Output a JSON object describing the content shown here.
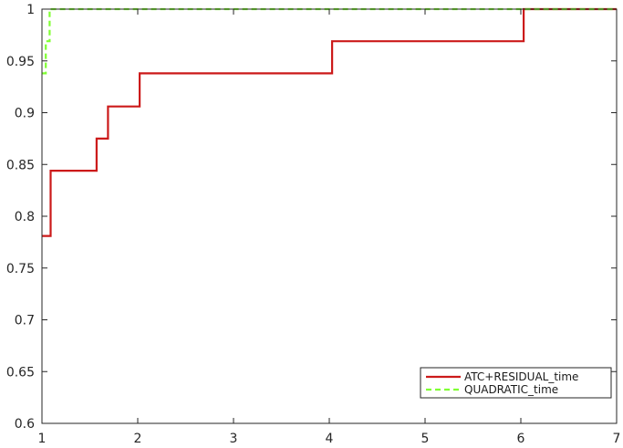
{
  "chart_data": {
    "type": "line",
    "xlim": [
      1,
      7
    ],
    "ylim": [
      0.6,
      1
    ],
    "x_ticks": [
      1,
      2,
      3,
      4,
      5,
      6,
      7
    ],
    "x_tick_labels": [
      "1",
      "2",
      "3",
      "4",
      "5",
      "6",
      "7"
    ],
    "y_ticks": [
      0.6,
      0.65,
      0.7,
      0.75,
      0.8,
      0.85,
      0.9,
      0.95,
      1
    ],
    "y_tick_labels": [
      "0.6",
      "0.65",
      "0.7",
      "0.75",
      "0.8",
      "0.85",
      "0.9",
      "0.95",
      "1"
    ],
    "grid": false,
    "legend_position": "bottom-right",
    "series": [
      {
        "name": "ATC+RESIDUAL_time",
        "color": "#cc1a1a",
        "style": "solid",
        "step": true,
        "points": [
          [
            1.0,
            0.781
          ],
          [
            1.09,
            0.781
          ],
          [
            1.09,
            0.844
          ],
          [
            1.57,
            0.844
          ],
          [
            1.57,
            0.875
          ],
          [
            1.69,
            0.875
          ],
          [
            1.69,
            0.906
          ],
          [
            2.02,
            0.906
          ],
          [
            2.02,
            0.938
          ],
          [
            4.03,
            0.938
          ],
          [
            4.03,
            0.969
          ],
          [
            6.03,
            0.969
          ],
          [
            6.03,
            1.0
          ],
          [
            7.0,
            1.0
          ]
        ]
      },
      {
        "name": "QUADRATIC_time",
        "color": "#80ff33",
        "style": "dashed",
        "step": true,
        "points": [
          [
            1.0,
            0.938
          ],
          [
            1.04,
            0.938
          ],
          [
            1.04,
            0.969
          ],
          [
            1.08,
            0.969
          ],
          [
            1.08,
            1.0
          ],
          [
            7.0,
            1.0
          ]
        ]
      }
    ]
  }
}
